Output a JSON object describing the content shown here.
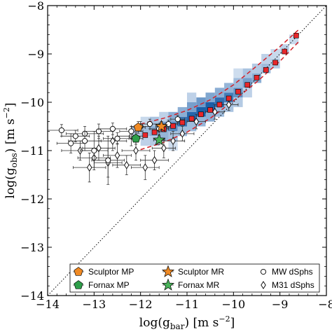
{
  "chart_data": {
    "type": "scatter",
    "xlabel_main": "log(g",
    "xlabel_sub": "bar",
    "xlabel_units": ") [m s",
    "xlabel_exp": "−2",
    "xlabel_end": "]",
    "ylabel_main": "log(g",
    "ylabel_sub": "obs",
    "ylabel_units": ") [m s",
    "ylabel_exp": "−2",
    "ylabel_end": "]",
    "xlim": [
      -14,
      -8
    ],
    "ylim": [
      -14,
      -8
    ],
    "xticks": [
      -14,
      -13,
      -12,
      -11,
      -10,
      -9,
      -8
    ],
    "yticks": [
      -14,
      -13,
      -12,
      -11,
      -10,
      -9,
      -8
    ],
    "xtick_labels": [
      "−14",
      "−13",
      "−12",
      "−11",
      "−10",
      "−9",
      "−8"
    ],
    "ytick_labels": [
      "−14",
      "−13",
      "−12",
      "−11",
      "−10",
      "−9",
      "−8"
    ],
    "colors": {
      "binned_squares": "#e8262a",
      "relation_dashed": "#d42027",
      "one_to_one": "#000000",
      "sculptor_mp": "#f08a24",
      "fornax_mp": "#2e9e4a",
      "sculptor_mr": "#f08a24",
      "fornax_mr": "#49b35a",
      "density_low": "#e6eef8",
      "density_high": "#1c5fa8"
    },
    "binned_means": [
      {
        "x": -11.9,
        "y": -10.68
      },
      {
        "x": -11.7,
        "y": -10.62
      },
      {
        "x": -11.5,
        "y": -10.56
      },
      {
        "x": -11.3,
        "y": -10.49
      },
      {
        "x": -11.1,
        "y": -10.42
      },
      {
        "x": -10.9,
        "y": -10.34
      },
      {
        "x": -10.7,
        "y": -10.25
      },
      {
        "x": -10.5,
        "y": -10.16
      },
      {
        "x": -10.3,
        "y": -10.05
      },
      {
        "x": -10.1,
        "y": -9.92
      },
      {
        "x": -9.9,
        "y": -9.78
      },
      {
        "x": -9.7,
        "y": -9.64
      },
      {
        "x": -9.5,
        "y": -9.49
      },
      {
        "x": -9.3,
        "y": -9.33
      },
      {
        "x": -9.1,
        "y": -9.18
      },
      {
        "x": -8.9,
        "y": -8.95
      },
      {
        "x": -8.65,
        "y": -8.62
      }
    ],
    "relation_upper": [
      [
        -12.0,
        -10.45
      ],
      [
        -11.5,
        -10.33
      ],
      [
        -11.0,
        -10.17
      ],
      [
        -10.5,
        -9.95
      ],
      [
        -10.0,
        -9.64
      ],
      [
        -9.5,
        -9.25
      ],
      [
        -9.0,
        -8.85
      ],
      [
        -8.6,
        -8.5
      ]
    ],
    "relation_lower": [
      [
        -12.0,
        -10.98
      ],
      [
        -11.5,
        -10.83
      ],
      [
        -11.0,
        -10.62
      ],
      [
        -10.5,
        -10.33
      ],
      [
        -10.0,
        -9.97
      ],
      [
        -9.5,
        -9.58
      ],
      [
        -9.0,
        -9.15
      ],
      [
        -8.6,
        -8.75
      ]
    ],
    "density_cells": [
      [
        -12.1,
        -10.6,
        0.25
      ],
      [
        -11.9,
        -10.6,
        0.35
      ],
      [
        -11.9,
        -10.8,
        0.2
      ],
      [
        -11.7,
        -10.6,
        0.45
      ],
      [
        -11.7,
        -10.4,
        0.3
      ],
      [
        -11.7,
        -10.8,
        0.25
      ],
      [
        -11.5,
        -10.5,
        0.55
      ],
      [
        -11.5,
        -10.7,
        0.4
      ],
      [
        -11.5,
        -10.3,
        0.2
      ],
      [
        -11.3,
        -10.5,
        0.7
      ],
      [
        -11.3,
        -10.3,
        0.45
      ],
      [
        -11.3,
        -10.7,
        0.3
      ],
      [
        -11.1,
        -10.4,
        0.85
      ],
      [
        -11.1,
        -10.2,
        0.45
      ],
      [
        -11.1,
        -10.6,
        0.35
      ],
      [
        -10.9,
        -10.3,
        0.95
      ],
      [
        -10.9,
        -10.1,
        0.55
      ],
      [
        -10.9,
        -10.5,
        0.35
      ],
      [
        -10.7,
        -10.2,
        1.0
      ],
      [
        -10.7,
        -10.0,
        0.6
      ],
      [
        -10.7,
        -10.4,
        0.4
      ],
      [
        -10.5,
        -10.1,
        1.0
      ],
      [
        -10.5,
        -9.9,
        0.5
      ],
      [
        -10.5,
        -10.3,
        0.45
      ],
      [
        -10.3,
        -10.0,
        0.9
      ],
      [
        -10.3,
        -9.8,
        0.45
      ],
      [
        -10.3,
        -10.2,
        0.35
      ],
      [
        -10.1,
        -9.9,
        0.8
      ],
      [
        -10.1,
        -9.7,
        0.4
      ],
      [
        -10.1,
        -10.1,
        0.3
      ],
      [
        -9.9,
        -9.8,
        0.65
      ],
      [
        -9.9,
        -9.6,
        0.35
      ],
      [
        -9.9,
        -10.0,
        0.25
      ],
      [
        -9.7,
        -9.6,
        0.55
      ],
      [
        -9.7,
        -9.4,
        0.3
      ],
      [
        -9.7,
        -9.8,
        0.2
      ],
      [
        -9.5,
        -9.5,
        0.45
      ],
      [
        -9.5,
        -9.3,
        0.25
      ],
      [
        -9.3,
        -9.3,
        0.35
      ],
      [
        -9.3,
        -9.1,
        0.2
      ],
      [
        -9.1,
        -9.2,
        0.25
      ],
      [
        -9.1,
        -9.0,
        0.15
      ],
      [
        -8.9,
        -8.9,
        0.2
      ],
      [
        -8.7,
        -8.7,
        0.15
      ],
      [
        -11.9,
        -10.4,
        0.15
      ],
      [
        -10.9,
        -9.9,
        0.2
      ],
      [
        -9.9,
        -9.4,
        0.12
      ],
      [
        -11.3,
        -10.9,
        0.12
      ]
    ],
    "mw_dsphs": [
      {
        "x": -13.7,
        "y": -10.58,
        "xerr": 0.35,
        "yerr": 0.12
      },
      {
        "x": -13.4,
        "y": -10.7,
        "xerr": 0.3,
        "yerr": 0.12
      },
      {
        "x": -13.2,
        "y": -10.65,
        "xerr": 0.4,
        "yerr": 0.15
      },
      {
        "x": -13.5,
        "y": -10.85,
        "xerr": 0.3,
        "yerr": 0.2
      },
      {
        "x": -13.2,
        "y": -10.8,
        "xerr": 0.35,
        "yerr": 0.2
      },
      {
        "x": -12.9,
        "y": -10.6,
        "xerr": 0.3,
        "yerr": 0.15
      },
      {
        "x": -12.6,
        "y": -10.55,
        "xerr": 0.3,
        "yerr": 0.12
      },
      {
        "x": -12.5,
        "y": -10.75,
        "xerr": 0.3,
        "yerr": 0.12
      },
      {
        "x": -12.2,
        "y": -10.6,
        "xerr": 0.25,
        "yerr": 0.1
      },
      {
        "x": -12.0,
        "y": -10.5,
        "xerr": 0.2,
        "yerr": 0.1
      },
      {
        "x": -11.8,
        "y": -10.45,
        "xerr": 0.2,
        "yerr": 0.1
      },
      {
        "x": -11.6,
        "y": -10.55,
        "xerr": 0.2,
        "yerr": 0.08
      },
      {
        "x": -11.4,
        "y": -10.45,
        "xerr": 0.2,
        "yerr": 0.08
      },
      {
        "x": -11.2,
        "y": -10.35,
        "xerr": 0.15,
        "yerr": 0.08
      },
      {
        "x": -13.0,
        "y": -11.0,
        "xerr": 0.3,
        "yerr": 0.4
      },
      {
        "x": -12.7,
        "y": -11.2,
        "xerr": 0.35,
        "yerr": 0.5
      }
    ],
    "m31_dsphs": [
      {
        "x": -13.3,
        "y": -11.0,
        "xerr": 0.4,
        "yerr": 0.2
      },
      {
        "x": -13.0,
        "y": -11.15,
        "xerr": 0.35,
        "yerr": 0.2
      },
      {
        "x": -12.9,
        "y": -10.95,
        "xerr": 0.35,
        "yerr": 0.25
      },
      {
        "x": -12.7,
        "y": -11.25,
        "xerr": 0.3,
        "yerr": 0.3
      },
      {
        "x": -12.5,
        "y": -11.1,
        "xerr": 0.3,
        "yerr": 0.25
      },
      {
        "x": -12.3,
        "y": -11.3,
        "xerr": 0.3,
        "yerr": 0.2
      },
      {
        "x": -12.1,
        "y": -11.0,
        "xerr": 0.3,
        "yerr": 0.2
      },
      {
        "x": -11.9,
        "y": -11.35,
        "xerr": 0.3,
        "yerr": 0.25
      },
      {
        "x": -11.7,
        "y": -11.2,
        "xerr": 0.3,
        "yerr": 0.2
      },
      {
        "x": -11.5,
        "y": -10.95,
        "xerr": 0.25,
        "yerr": 0.2
      },
      {
        "x": -11.3,
        "y": -10.8,
        "xerr": 0.25,
        "yerr": 0.2
      },
      {
        "x": -12.2,
        "y": -10.7,
        "xerr": 0.3,
        "yerr": 0.2
      },
      {
        "x": -12.6,
        "y": -10.8,
        "xerr": 0.3,
        "yerr": 0.2
      },
      {
        "x": -11.1,
        "y": -10.65,
        "xerr": 0.25,
        "yerr": 0.15
      },
      {
        "x": -10.4,
        "y": -10.2,
        "xerr": 0.2,
        "yerr": 0.15
      },
      {
        "x": -10.1,
        "y": -10.05,
        "xerr": 0.2,
        "yerr": 0.12
      },
      {
        "x": -10.8,
        "y": -10.4,
        "xerr": 0.2,
        "yerr": 0.15
      },
      {
        "x": -13.1,
        "y": -11.35,
        "xerr": 0.35,
        "yerr": 0.3
      }
    ],
    "sculptor_mp": {
      "x": -12.05,
      "y": -10.52,
      "xerr": 0.15,
      "yerr": 0.12
    },
    "fornax_mp": {
      "x": -12.1,
      "y": -10.75,
      "xerr": 0.15,
      "yerr": 0.12
    },
    "sculptor_mr": {
      "x": -11.55,
      "y": -10.5,
      "xerr": 0.12,
      "yerr": 0.1
    },
    "fornax_mr": {
      "x": -11.6,
      "y": -10.78,
      "xerr": 0.12,
      "yerr": 0.1
    },
    "legend": {
      "position": "lower-right",
      "entries": [
        {
          "label": "Sculptor MP",
          "marker": "pentagon-orange"
        },
        {
          "label": "Sculptor MR",
          "marker": "star-orange"
        },
        {
          "label": "MW dSphs",
          "marker": "circle-open"
        },
        {
          "label": "Fornax MP",
          "marker": "pentagon-green"
        },
        {
          "label": "Fornax MR",
          "marker": "star-green"
        },
        {
          "label": "M31 dSphs",
          "marker": "diamond-open"
        }
      ]
    }
  }
}
